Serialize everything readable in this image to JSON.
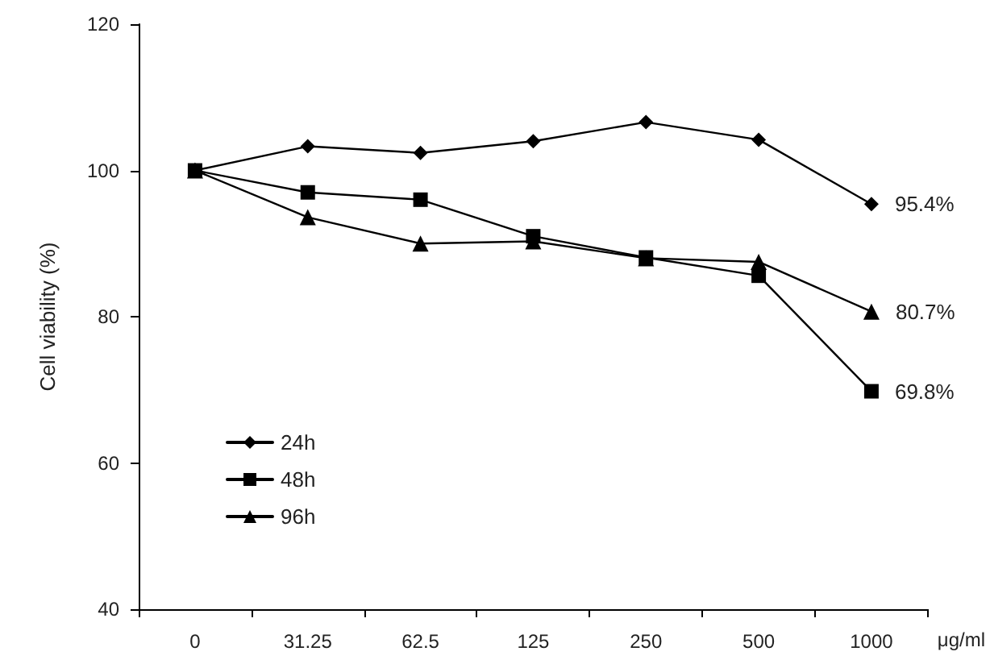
{
  "chart_data": {
    "type": "line",
    "xlabel": "μg/ml",
    "ylabel": "Cell viability (%)",
    "categories": [
      "0",
      "31.25",
      "62.5",
      "125",
      "250",
      "500",
      "1000"
    ],
    "ylim": [
      40,
      120
    ],
    "yticks": [
      40,
      60,
      80,
      100,
      120
    ],
    "grid": false,
    "legend": "bottom left",
    "line_style": "solid",
    "series": [
      {
        "name": "24h",
        "color": "#000000",
        "marker": "diamond",
        "values": [
          100,
          103.3,
          102.4,
          104,
          106.6,
          104.2,
          95.4
        ],
        "value_labels": [
          null,
          null,
          null,
          null,
          null,
          null,
          "95.4%"
        ]
      },
      {
        "name": "48h",
        "color": "#000000",
        "marker": "square",
        "values": [
          100,
          97,
          96,
          91,
          88.1,
          85.6,
          69.8
        ],
        "value_labels": [
          null,
          null,
          null,
          null,
          null,
          null,
          "69.8%"
        ]
      },
      {
        "name": "96h",
        "color": "#000000",
        "marker": "triangle",
        "values": [
          100,
          93.6,
          90,
          90.3,
          88,
          87.5,
          80.7
        ],
        "value_labels": [
          null,
          null,
          null,
          null,
          null,
          null,
          "80.7%"
        ]
      }
    ]
  }
}
